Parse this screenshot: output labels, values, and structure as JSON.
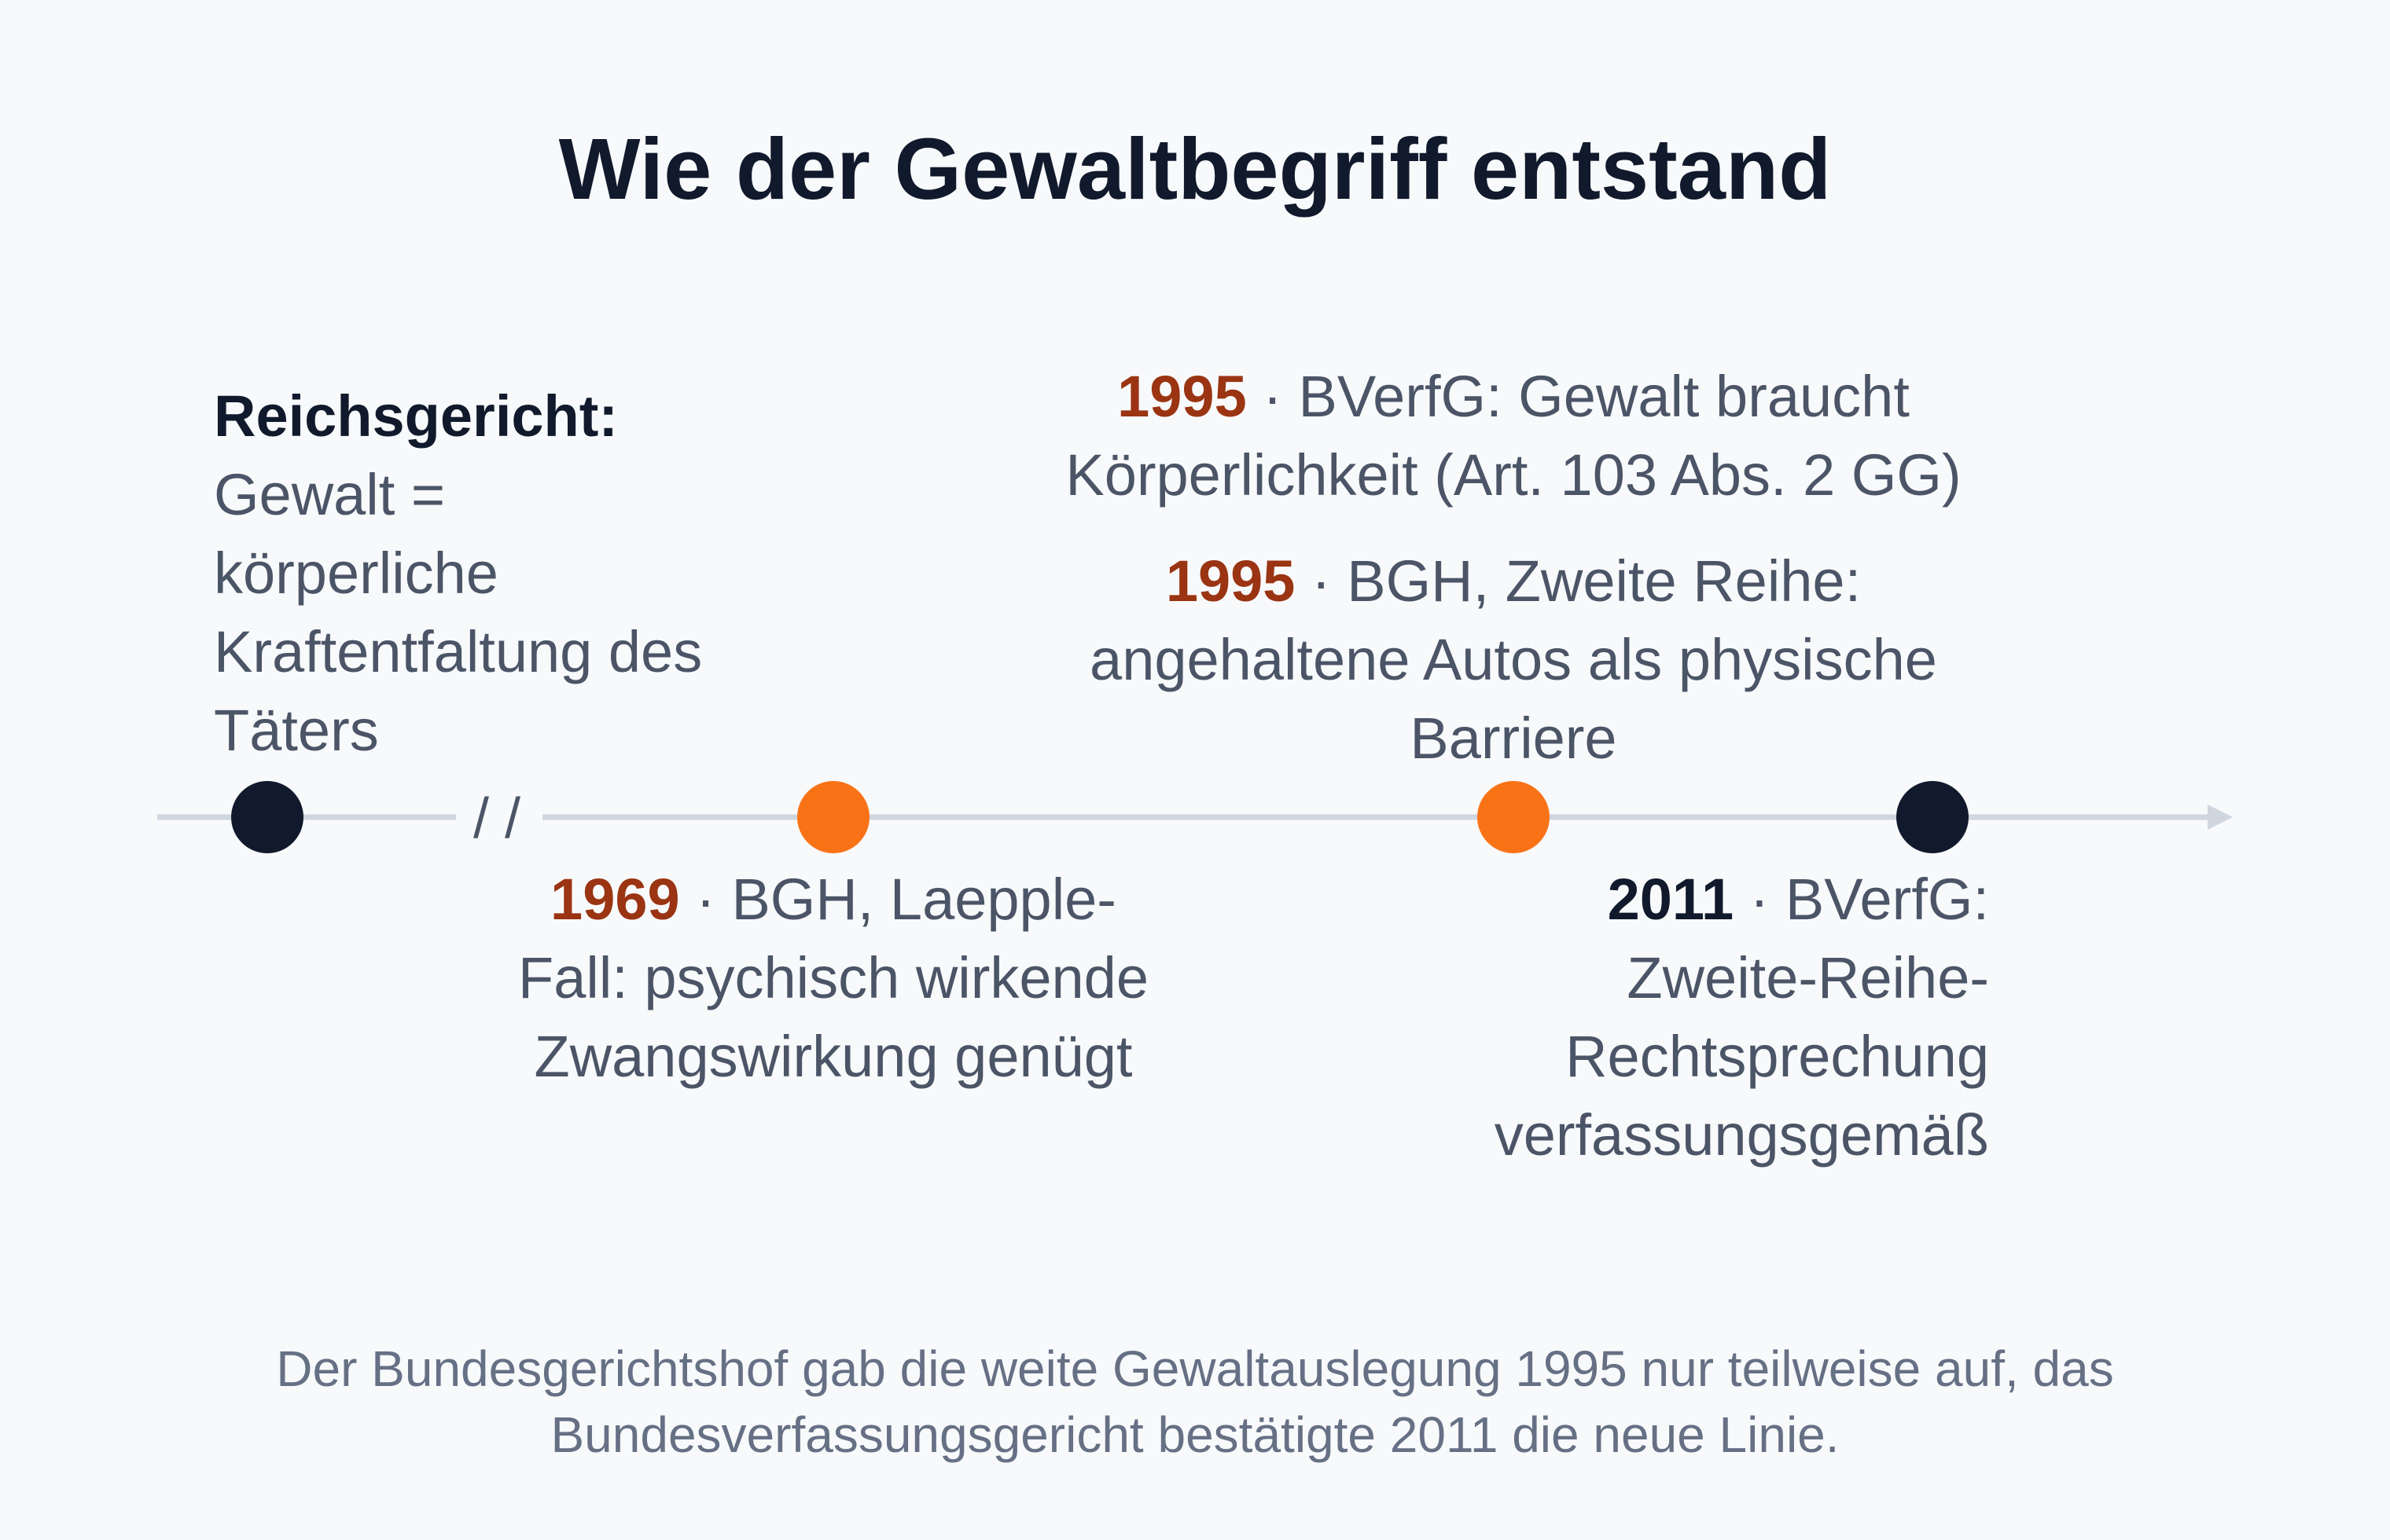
{
  "title": "Wie der Gewaltbegriff entstand",
  "events": [
    {
      "heading": "Reichsgericht:",
      "text": "Gewalt = körperliche Kraftentfaltung des Täters"
    },
    {
      "year": "1969",
      "separator": "·",
      "text": "BGH, Laepple-Fall: psychisch wirkende Zwangswirkung genügt"
    },
    {
      "year": "1995",
      "separator": "·",
      "text": "BVerfG: Gewalt braucht Körperlichkeit (Art. 103 Abs. 2 GG)"
    },
    {
      "year": "1995",
      "separator": "·",
      "text": "BGH, Zweite Reihe: angehaltene Autos als physische Barriere"
    },
    {
      "year": "2011",
      "separator": "·",
      "text": "BVerfG: Zweite-Reihe-Rechtsprechung verfassungsgemäß"
    }
  ],
  "break_mark": "/ /",
  "colors": {
    "accent_marker": "#f97316",
    "dark_marker": "#111a2c",
    "axis": "#cfd6e0",
    "accent_year": "#9a3412"
  },
  "caption": "Der Bundesgerichtshof gab die weite Gewaltauslegung 1995 nur teilweise auf, das Bundesverfassungsgericht bestätigte 2011 die neue Linie."
}
